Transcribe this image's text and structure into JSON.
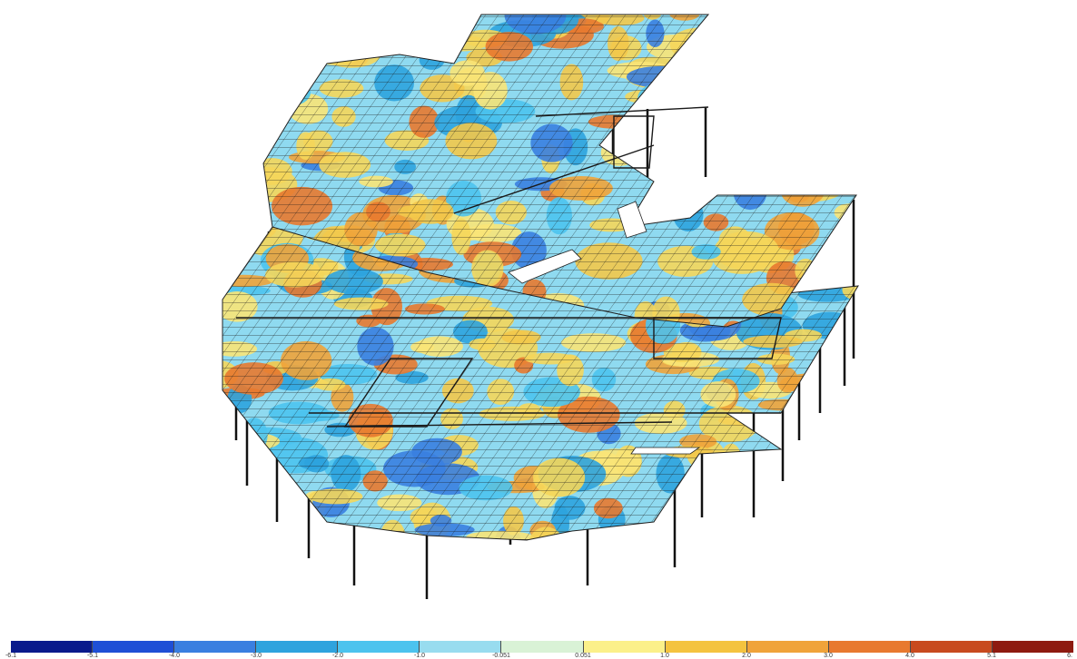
{
  "view": {
    "title": "",
    "description": ""
  },
  "legend": {
    "colors": [
      "#0a1a8c",
      "#1f4fd6",
      "#3a7fe0",
      "#2ea3de",
      "#4cc3ee",
      "#98dcef",
      "#d9f2d6",
      "#fbf08a",
      "#f4c33f",
      "#f0a33a",
      "#e8792f",
      "#c84a1f",
      "#8e1a10"
    ],
    "ticks": [
      "-6.1",
      "-5.1",
      "-4.0",
      "-3.0",
      "-2.0",
      "-1.0",
      "-0.051",
      "0.051",
      "1.0",
      "2.0",
      "3.0",
      "4.0",
      "5.1",
      "6."
    ]
  }
}
